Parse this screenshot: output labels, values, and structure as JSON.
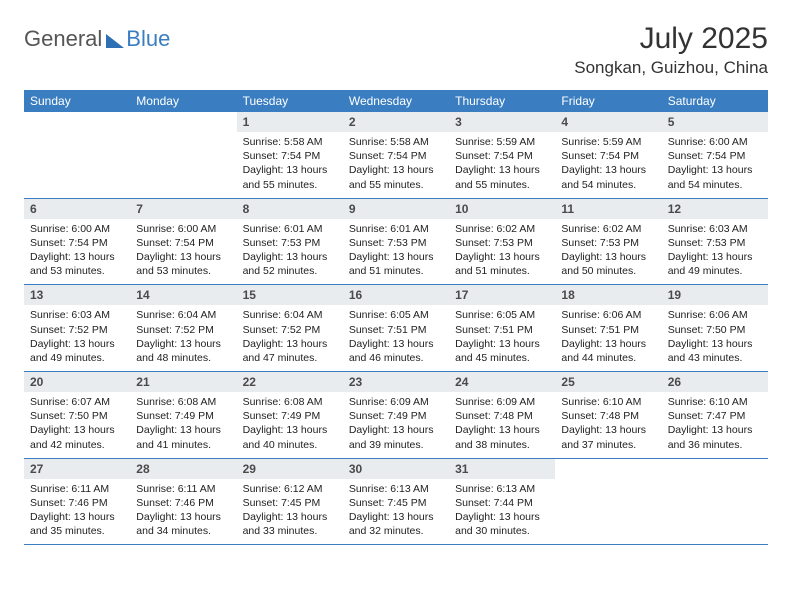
{
  "logo": {
    "general": "General",
    "blue": "Blue"
  },
  "title": "July 2025",
  "location": "Songkan, Guizhou, China",
  "colors": {
    "header_bg": "#3a7ec1",
    "header_text": "#ffffff",
    "daynum_bg": "#e9ecef",
    "border": "#3a7ec1",
    "logo_gray": "#565656",
    "logo_blue": "#3a7ec1"
  },
  "dayNames": [
    "Sunday",
    "Monday",
    "Tuesday",
    "Wednesday",
    "Thursday",
    "Friday",
    "Saturday"
  ],
  "startOffset": 2,
  "days": [
    {
      "n": 1,
      "sunrise": "5:58 AM",
      "sunset": "7:54 PM",
      "dlh": 13,
      "dlm": 55
    },
    {
      "n": 2,
      "sunrise": "5:58 AM",
      "sunset": "7:54 PM",
      "dlh": 13,
      "dlm": 55
    },
    {
      "n": 3,
      "sunrise": "5:59 AM",
      "sunset": "7:54 PM",
      "dlh": 13,
      "dlm": 55
    },
    {
      "n": 4,
      "sunrise": "5:59 AM",
      "sunset": "7:54 PM",
      "dlh": 13,
      "dlm": 54
    },
    {
      "n": 5,
      "sunrise": "6:00 AM",
      "sunset": "7:54 PM",
      "dlh": 13,
      "dlm": 54
    },
    {
      "n": 6,
      "sunrise": "6:00 AM",
      "sunset": "7:54 PM",
      "dlh": 13,
      "dlm": 53
    },
    {
      "n": 7,
      "sunrise": "6:00 AM",
      "sunset": "7:54 PM",
      "dlh": 13,
      "dlm": 53
    },
    {
      "n": 8,
      "sunrise": "6:01 AM",
      "sunset": "7:53 PM",
      "dlh": 13,
      "dlm": 52
    },
    {
      "n": 9,
      "sunrise": "6:01 AM",
      "sunset": "7:53 PM",
      "dlh": 13,
      "dlm": 51
    },
    {
      "n": 10,
      "sunrise": "6:02 AM",
      "sunset": "7:53 PM",
      "dlh": 13,
      "dlm": 51
    },
    {
      "n": 11,
      "sunrise": "6:02 AM",
      "sunset": "7:53 PM",
      "dlh": 13,
      "dlm": 50
    },
    {
      "n": 12,
      "sunrise": "6:03 AM",
      "sunset": "7:53 PM",
      "dlh": 13,
      "dlm": 49
    },
    {
      "n": 13,
      "sunrise": "6:03 AM",
      "sunset": "7:52 PM",
      "dlh": 13,
      "dlm": 49
    },
    {
      "n": 14,
      "sunrise": "6:04 AM",
      "sunset": "7:52 PM",
      "dlh": 13,
      "dlm": 48
    },
    {
      "n": 15,
      "sunrise": "6:04 AM",
      "sunset": "7:52 PM",
      "dlh": 13,
      "dlm": 47
    },
    {
      "n": 16,
      "sunrise": "6:05 AM",
      "sunset": "7:51 PM",
      "dlh": 13,
      "dlm": 46
    },
    {
      "n": 17,
      "sunrise": "6:05 AM",
      "sunset": "7:51 PM",
      "dlh": 13,
      "dlm": 45
    },
    {
      "n": 18,
      "sunrise": "6:06 AM",
      "sunset": "7:51 PM",
      "dlh": 13,
      "dlm": 44
    },
    {
      "n": 19,
      "sunrise": "6:06 AM",
      "sunset": "7:50 PM",
      "dlh": 13,
      "dlm": 43
    },
    {
      "n": 20,
      "sunrise": "6:07 AM",
      "sunset": "7:50 PM",
      "dlh": 13,
      "dlm": 42
    },
    {
      "n": 21,
      "sunrise": "6:08 AM",
      "sunset": "7:49 PM",
      "dlh": 13,
      "dlm": 41
    },
    {
      "n": 22,
      "sunrise": "6:08 AM",
      "sunset": "7:49 PM",
      "dlh": 13,
      "dlm": 40
    },
    {
      "n": 23,
      "sunrise": "6:09 AM",
      "sunset": "7:49 PM",
      "dlh": 13,
      "dlm": 39
    },
    {
      "n": 24,
      "sunrise": "6:09 AM",
      "sunset": "7:48 PM",
      "dlh": 13,
      "dlm": 38
    },
    {
      "n": 25,
      "sunrise": "6:10 AM",
      "sunset": "7:48 PM",
      "dlh": 13,
      "dlm": 37
    },
    {
      "n": 26,
      "sunrise": "6:10 AM",
      "sunset": "7:47 PM",
      "dlh": 13,
      "dlm": 36
    },
    {
      "n": 27,
      "sunrise": "6:11 AM",
      "sunset": "7:46 PM",
      "dlh": 13,
      "dlm": 35
    },
    {
      "n": 28,
      "sunrise": "6:11 AM",
      "sunset": "7:46 PM",
      "dlh": 13,
      "dlm": 34
    },
    {
      "n": 29,
      "sunrise": "6:12 AM",
      "sunset": "7:45 PM",
      "dlh": 13,
      "dlm": 33
    },
    {
      "n": 30,
      "sunrise": "6:13 AM",
      "sunset": "7:45 PM",
      "dlh": 13,
      "dlm": 32
    },
    {
      "n": 31,
      "sunrise": "6:13 AM",
      "sunset": "7:44 PM",
      "dlh": 13,
      "dlm": 30
    }
  ]
}
